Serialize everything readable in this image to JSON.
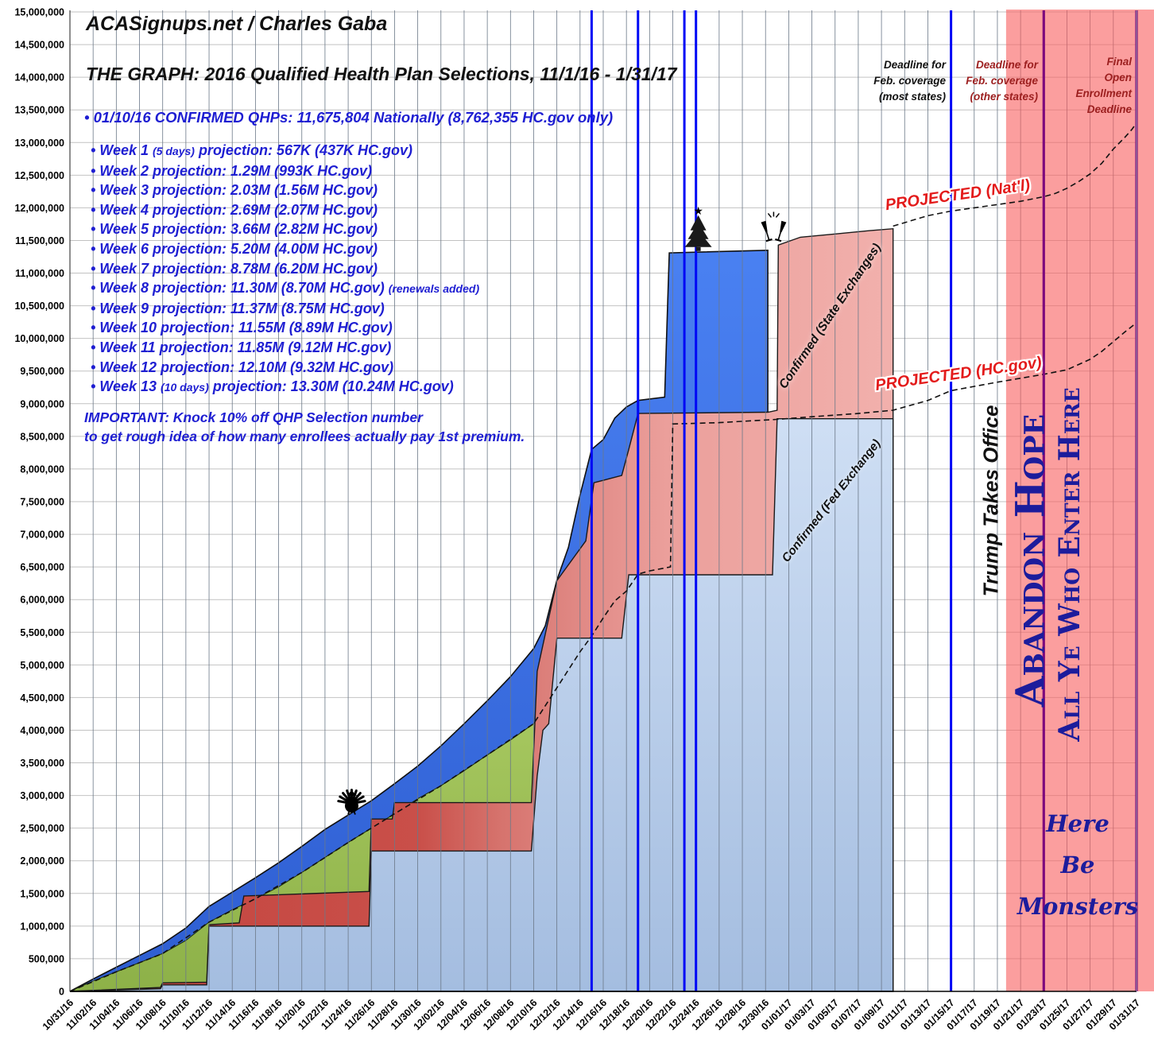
{
  "header": {
    "brand": "ACASignups.net / Charles Gaba",
    "title": "THE GRAPH: 2016 Qualified Health Plan Selections, 11/1/16 - 1/31/17",
    "confirmed_line": "• 01/10/16 CONFIRMED QHPs: 11,675,804 Nationally (8,762,355 HC.gov only)"
  },
  "notes": {
    "weeks": [
      "• Week 1 (5 days) projection: 567K (437K HC.gov)",
      "• Week 2 projection: 1.29M (993K HC.gov)",
      "• Week 3 projection: 2.03M (1.56M HC.gov)",
      "• Week 4 projection: 2.69M (2.07M HC.gov)",
      "• Week 5 projection: 3.66M (2.82M HC.gov)",
      "• Week 6 projection: 5.20M (4.00M HC.gov)",
      "• Week 7 projection: 8.78M (6.20M HC.gov)",
      "• Week 8 projection: 11.30M (8.70M HC.gov) (renewals added)",
      "• Week 9 projection: 11.37M (8.75M HC.gov)",
      "• Week 10 projection: 11.55M (8.89M HC.gov)",
      "• Week 11 projection: 11.85M (9.12M HC.gov)",
      "• Week 12 projection: 12.10M (9.32M HC.gov)",
      "• Week 13 (10 days) projection: 13.30M (10.24M HC.gov)"
    ],
    "important_line1": "IMPORTANT: Knock 10% off QHP Selection number",
    "important_line2": "to get rough idea of how many enrollees actually pay 1st premium."
  },
  "annotations": {
    "projected_natl": "PROJECTED (Nat'l)",
    "projected_hcgov": "PROJECTED (HC.gov)",
    "confirmed_state": "Confirmed (State Exchanges)",
    "confirmed_fed": "Confirmed (Fed Exchange)",
    "trump": "Trump Takes Office",
    "abandon_line1": "Abandon Hope",
    "abandon_line2": "All Ye Who Enter Here",
    "monsters_line1": "Here",
    "monsters_line2": "Be",
    "monsters_line3": "Monsters",
    "deadline_most": [
      "Deadline for",
      "Feb. coverage",
      "(most states)"
    ],
    "deadline_other": [
      "Deadline for",
      "Feb. coverage",
      "(other states)"
    ],
    "deadline_final": [
      "Final",
      "Open",
      "Enrollment",
      "Deadline"
    ]
  },
  "colors": {
    "note_blue": "#1e1ed2",
    "projected_red": "#e31b1b",
    "dark_red_text": "#9c1f1f",
    "navy_decor": "#1c1c9c",
    "blue_line": "#0008f5",
    "purple_line": "#7d0a7d",
    "danger_zone_fill": "rgba(249,93,93,0.60)",
    "h_grid": "#c2c2c2",
    "v_grid": "#6b7888",
    "fed_grad_top": "#d3e2f6",
    "fed_grad_bottom": "#a4bde0",
    "state_grad_left": "#c4453f",
    "state_grad_mid": "#d6736d",
    "state_grad_right": "#f2b1ad",
    "green_grad_top": "#a6c75f",
    "green_grad_bottom": "#8db148",
    "natl_grad_top": "#4a81f2",
    "natl_grad_bottom": "#2e5ed2",
    "dash_line": "#111111",
    "axis_text": "#000000"
  },
  "chart_data": {
    "type": "area",
    "title": "THE GRAPH: 2016 Qualified Health Plan Selections, 11/1/16 - 1/31/17",
    "day0_date": "10/31/16",
    "x_days_total": 92,
    "x_tick_labels": [
      "10/31/16",
      "11/02/16",
      "11/04/16",
      "11/06/16",
      "11/08/16",
      "11/10/16",
      "11/12/16",
      "11/14/16",
      "11/16/16",
      "11/18/16",
      "11/20/16",
      "11/22/16",
      "11/24/16",
      "11/26/16",
      "11/28/16",
      "11/30/16",
      "12/02/16",
      "12/04/16",
      "12/06/16",
      "12/08/16",
      "12/10/16",
      "12/12/16",
      "12/14/16",
      "12/16/16",
      "12/18/16",
      "12/20/16",
      "12/22/16",
      "12/24/16",
      "12/26/16",
      "12/28/16",
      "12/30/16",
      "01/01/17",
      "01/03/17",
      "01/05/17",
      "01/07/17",
      "01/09/17",
      "01/11/17",
      "01/13/17",
      "01/15/17",
      "01/17/17",
      "01/19/17",
      "01/21/17",
      "01/23/17",
      "01/25/17",
      "01/27/17",
      "01/29/17",
      "01/31/17"
    ],
    "y_min": 0,
    "y_max": 15000000,
    "y_tick_step": 500000,
    "y_tick_labels": [
      "0",
      "500,000",
      "1,000,000",
      "1,500,000",
      "2,000,000",
      "2,500,000",
      "3,000,000",
      "3,500,000",
      "4,000,000",
      "4,500,000",
      "5,000,000",
      "5,500,000",
      "6,000,000",
      "6,500,000",
      "7,000,000",
      "7,500,000",
      "8,000,000",
      "8,500,000",
      "9,000,000",
      "9,500,000",
      "10,000,000",
      "10,500,000",
      "11,000,000",
      "11,500,000",
      "12,000,000",
      "12,500,000",
      "13,000,000",
      "13,500,000",
      "14,000,000",
      "14,500,000",
      "15,000,000"
    ],
    "units": "plan selections (values stored in millions, x in days after 10/31/16)",
    "series": [
      {
        "id": "natl",
        "name": "Estimated national total (solid top line)",
        "kind": "area",
        "points": [
          [
            0,
            0
          ],
          [
            2,
            0.19
          ],
          [
            4,
            0.37
          ],
          [
            6,
            0.55
          ],
          [
            8,
            0.73
          ],
          [
            10,
            0.97
          ],
          [
            12,
            1.3
          ],
          [
            14,
            1.52
          ],
          [
            16,
            1.74
          ],
          [
            18,
            1.97
          ],
          [
            20,
            2.22
          ],
          [
            22,
            2.48
          ],
          [
            24,
            2.7
          ],
          [
            26,
            2.92
          ],
          [
            28,
            3.18
          ],
          [
            30,
            3.45
          ],
          [
            32,
            3.76
          ],
          [
            34,
            4.1
          ],
          [
            36,
            4.45
          ],
          [
            38,
            4.82
          ],
          [
            40,
            5.25
          ],
          [
            41,
            5.6
          ],
          [
            42,
            6.3
          ],
          [
            43,
            6.8
          ],
          [
            44,
            7.6
          ],
          [
            45,
            8.3
          ],
          [
            46,
            8.45
          ],
          [
            47,
            8.78
          ],
          [
            48,
            8.95
          ],
          [
            49,
            9.05
          ],
          [
            51.3,
            9.1
          ],
          [
            51.7,
            11.31
          ],
          [
            60.2,
            11.35
          ]
        ]
      },
      {
        "id": "green",
        "name": "HC.gov projection band (green)",
        "kind": "area",
        "points": [
          [
            0,
            0
          ],
          [
            2,
            0.16
          ],
          [
            4,
            0.3
          ],
          [
            6,
            0.44
          ],
          [
            8,
            0.58
          ],
          [
            10,
            0.78
          ],
          [
            12,
            1.06
          ],
          [
            14,
            1.25
          ],
          [
            16,
            1.42
          ],
          [
            18,
            1.6
          ],
          [
            20,
            1.82
          ],
          [
            22,
            2.05
          ],
          [
            24,
            2.28
          ],
          [
            26,
            2.5
          ],
          [
            28,
            2.72
          ],
          [
            30,
            2.95
          ],
          [
            32,
            3.15
          ],
          [
            34,
            3.38
          ],
          [
            36,
            3.62
          ],
          [
            38,
            3.85
          ],
          [
            40,
            4.1
          ],
          [
            41,
            4.35
          ],
          [
            42,
            4.65
          ],
          [
            43,
            4.95
          ],
          [
            44,
            5.2
          ],
          [
            45,
            5.44
          ],
          [
            46,
            5.72
          ],
          [
            47,
            5.98
          ],
          [
            48,
            6.13
          ],
          [
            49,
            6.39
          ],
          [
            50,
            6.44
          ],
          [
            51.8,
            6.5
          ],
          [
            52,
            8.69
          ],
          [
            56,
            8.71
          ],
          [
            60.2,
            8.75
          ]
        ]
      },
      {
        "id": "state",
        "name": "Confirmed (State Exchanges)",
        "kind": "area",
        "points": [
          [
            0,
            0
          ],
          [
            7.8,
            0.06
          ],
          [
            8,
            0.13
          ],
          [
            11.8,
            0.14
          ],
          [
            12,
            1.02
          ],
          [
            14.6,
            1.05
          ],
          [
            15,
            1.46
          ],
          [
            25.8,
            1.53
          ],
          [
            26,
            2.64
          ],
          [
            27.8,
            2.64
          ],
          [
            28,
            2.89
          ],
          [
            39.8,
            2.89
          ],
          [
            40.3,
            4.9
          ],
          [
            42,
            6.29
          ],
          [
            44.5,
            6.9
          ],
          [
            45.2,
            7.79
          ],
          [
            47.6,
            7.9
          ],
          [
            48.2,
            8.3
          ],
          [
            49,
            8.85
          ],
          [
            60.2,
            8.87
          ],
          [
            61,
            8.9
          ],
          [
            61.1,
            11.43
          ],
          [
            63,
            11.55
          ],
          [
            66,
            11.6
          ],
          [
            69,
            11.65
          ],
          [
            71,
            11.68
          ]
        ]
      },
      {
        "id": "fed",
        "name": "Confirmed (Fed Exchange)",
        "kind": "area",
        "points": [
          [
            0,
            0
          ],
          [
            7.8,
            0.04
          ],
          [
            8,
            0.1
          ],
          [
            11.8,
            0.1
          ],
          [
            12,
            1.0
          ],
          [
            25.8,
            1.0
          ],
          [
            26,
            2.15
          ],
          [
            39.8,
            2.15
          ],
          [
            40.3,
            3.3
          ],
          [
            40.8,
            4.0
          ],
          [
            41.3,
            4.1
          ],
          [
            42,
            5.41
          ],
          [
            47.6,
            5.41
          ],
          [
            48.2,
            6.38
          ],
          [
            60.6,
            6.38
          ],
          [
            61,
            8.77
          ],
          [
            71,
            8.77
          ]
        ]
      },
      {
        "id": "proj_hcgov",
        "name": "PROJECTED (HC.gov)",
        "kind": "dashed-line",
        "points": [
          [
            0,
            0
          ],
          [
            4,
            0.3
          ],
          [
            8,
            0.58
          ],
          [
            12,
            1.06
          ],
          [
            16,
            1.42
          ],
          [
            20,
            1.82
          ],
          [
            24,
            2.28
          ],
          [
            28,
            2.72
          ],
          [
            32,
            3.15
          ],
          [
            36,
            3.62
          ],
          [
            40,
            4.1
          ],
          [
            42,
            4.65
          ],
          [
            44,
            5.2
          ],
          [
            45,
            5.44
          ],
          [
            46,
            5.72
          ],
          [
            47,
            5.98
          ],
          [
            48,
            6.13
          ],
          [
            49,
            6.39
          ],
          [
            50,
            6.44
          ],
          [
            51.8,
            6.5
          ],
          [
            52,
            8.69
          ],
          [
            56,
            8.71
          ],
          [
            61,
            8.76
          ],
          [
            64,
            8.8
          ],
          [
            68,
            8.85
          ],
          [
            71,
            8.9
          ],
          [
            74,
            9.05
          ],
          [
            76,
            9.2
          ],
          [
            80,
            9.33
          ],
          [
            84,
            9.45
          ],
          [
            86,
            9.52
          ],
          [
            88,
            9.68
          ],
          [
            89,
            9.8
          ],
          [
            90,
            9.95
          ],
          [
            91,
            10.1
          ],
          [
            92,
            10.24
          ]
        ]
      },
      {
        "id": "proj_natl",
        "name": "PROJECTED (Nat'l)",
        "kind": "dashed-line",
        "points": [
          [
            71,
            11.72
          ],
          [
            74,
            11.88
          ],
          [
            76,
            11.95
          ],
          [
            78,
            12.0
          ],
          [
            80,
            12.05
          ],
          [
            82,
            12.1
          ],
          [
            84,
            12.17
          ],
          [
            85,
            12.22
          ],
          [
            86,
            12.3
          ],
          [
            87,
            12.4
          ],
          [
            88,
            12.52
          ],
          [
            89,
            12.68
          ],
          [
            90,
            12.9
          ],
          [
            91,
            13.08
          ],
          [
            91.6,
            13.2
          ],
          [
            92,
            13.3
          ]
        ]
      }
    ],
    "deadline_lines": [
      {
        "date": "12/15/16",
        "day": 45,
        "color": "blue"
      },
      {
        "date": "12/19/16",
        "day": 49,
        "color": "blue"
      },
      {
        "date": "12/23/16",
        "day": 53,
        "color": "blue"
      },
      {
        "date": "12/24/16",
        "day": 54,
        "color": "blue"
      },
      {
        "date": "01/15/17",
        "day": 76,
        "color": "blue"
      },
      {
        "date": "01/23/17",
        "day": 84,
        "color": "purple"
      },
      {
        "date": "01/31/17",
        "day": 92,
        "color": "purple"
      }
    ],
    "danger_zone": {
      "start_day": 80.75
    },
    "icons": [
      {
        "name": "turkey-icon",
        "day": 24.3,
        "base_m": 2.72
      },
      {
        "name": "christmas-tree-icon",
        "day": 54.2,
        "base_m": 11.35
      },
      {
        "name": "champagne-glasses-icon",
        "day": 60.7,
        "base_m": 11.5
      }
    ]
  }
}
